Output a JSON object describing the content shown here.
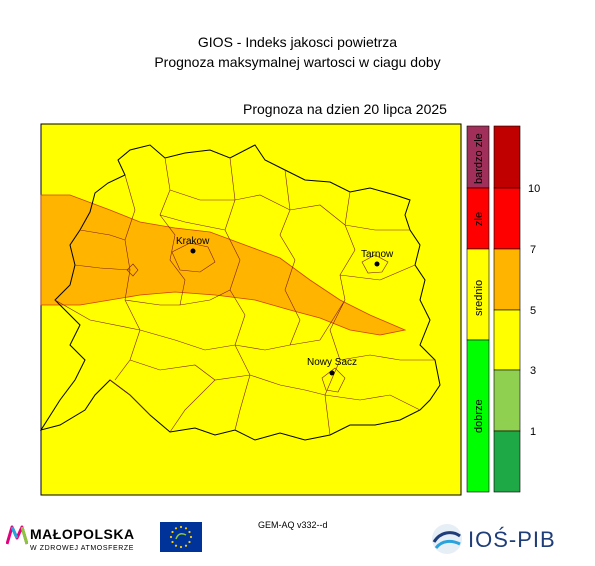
{
  "header": {
    "title": "GIOS - Indeks jakosci powietrza",
    "subtitle": "Prognoza maksymalnej wartosci w ciagu doby",
    "date_line": "Prognoza na dzien  20 lipca 2025"
  },
  "cities": [
    {
      "name": "Krakow"
    },
    {
      "name": "Tarnow"
    },
    {
      "name": "Nowy Sacz"
    }
  ],
  "categories": [
    {
      "label": "dobrze",
      "color": "#00ff00"
    },
    {
      "label": "srednio",
      "color": "#ffff00"
    },
    {
      "label": "zle",
      "color": "#ff0000"
    },
    {
      "label": "bardzo zle",
      "color": "#a0305a"
    }
  ],
  "scale": {
    "colors": [
      "#1ea846",
      "#8fd050",
      "#ffff00",
      "#ffb400",
      "#ff0000",
      "#c00000"
    ],
    "ticks": [
      "1",
      "3",
      "5",
      "7",
      "10"
    ]
  },
  "map_colors": {
    "background": "#ffff00",
    "high_zone": "#ffb400",
    "borders": "#000000",
    "zone_edge": "#d04000"
  },
  "footer": {
    "model_label": "GEM-AQ v332--d",
    "malopolska_name": "MAŁOPOLSKA",
    "malopolska_slogan": "W ZDROWEJ ATMOSFERZE",
    "eu_logo_icon": "eu-life-flag",
    "institute_name": "IOŚ-PIB"
  }
}
